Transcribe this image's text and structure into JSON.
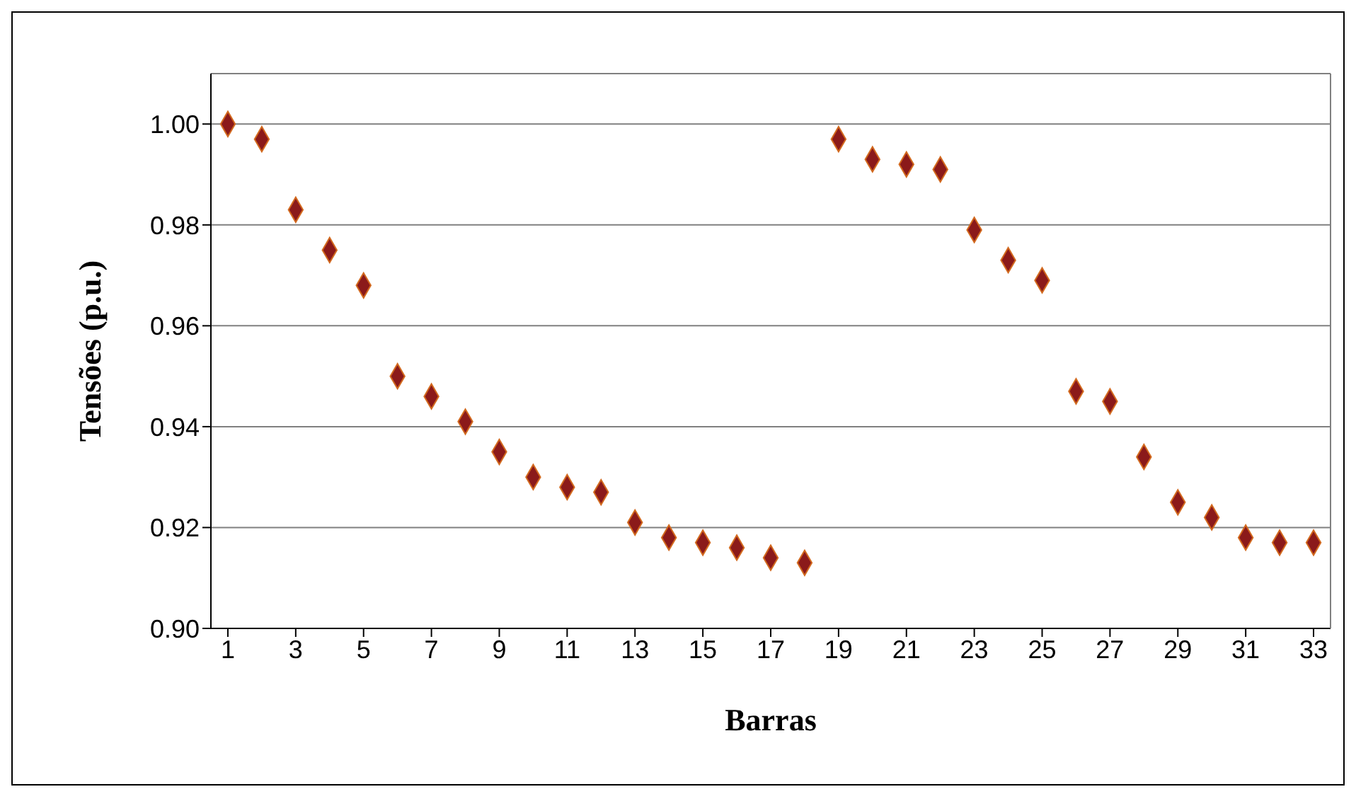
{
  "chart_data": {
    "type": "scatter",
    "xlabel": "Barras",
    "ylabel": "Tensões (p.u.)",
    "x": [
      1,
      2,
      3,
      4,
      5,
      6,
      7,
      8,
      9,
      10,
      11,
      12,
      13,
      14,
      15,
      16,
      17,
      18,
      19,
      20,
      21,
      22,
      23,
      24,
      25,
      26,
      27,
      28,
      29,
      30,
      31,
      32,
      33
    ],
    "xlim": [
      0.5,
      33.5
    ],
    "xticks": [
      1,
      3,
      5,
      7,
      9,
      11,
      13,
      15,
      17,
      19,
      21,
      23,
      25,
      27,
      29,
      31,
      33
    ],
    "series": [
      {
        "color": "#8b1a1a",
        "values": [
          1.0,
          0.997,
          0.983,
          0.975,
          0.968,
          0.95,
          0.946,
          0.941,
          0.935,
          0.93,
          0.928,
          0.927,
          0.921,
          0.918,
          0.917,
          0.916,
          0.914,
          0.913,
          0.997,
          0.993,
          0.992,
          0.991,
          0.979,
          0.973,
          0.969,
          0.947,
          0.945,
          0.934,
          0.925,
          0.922,
          0.918,
          0.917,
          0.917
        ]
      }
    ],
    "ylim": [
      0.9,
      1.01
    ],
    "yticks": [
      {
        "value": 0.9,
        "label": "0.90"
      },
      {
        "value": 0.92,
        "label": "0.92"
      },
      {
        "value": 0.94,
        "label": "0.94"
      },
      {
        "value": 0.96,
        "label": "0.96"
      },
      {
        "value": 0.98,
        "label": "0.98"
      },
      {
        "value": 1.0,
        "label": "1.00"
      }
    ],
    "grid": "y",
    "marker": "diamond"
  }
}
